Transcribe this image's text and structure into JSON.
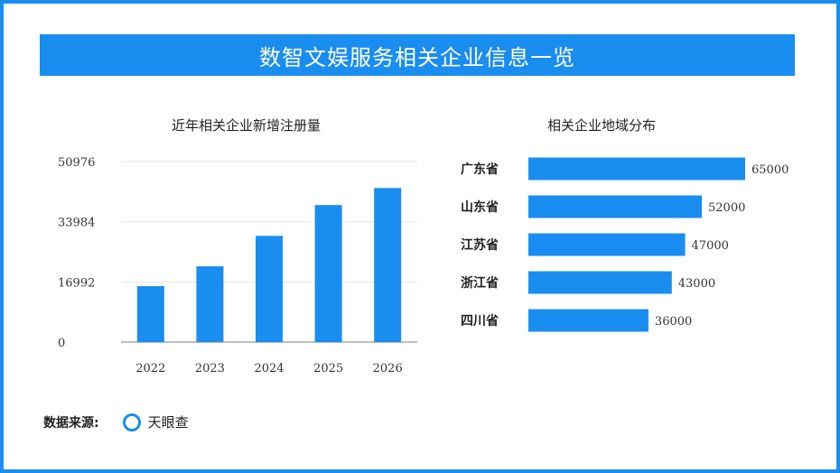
{
  "page": {
    "title": "数智文娱服务相关企业信息一览",
    "source_label": "数据来源:",
    "source_name": "天眼查",
    "accent": "#1a8df0"
  },
  "chart_data": [
    {
      "type": "bar",
      "title": "近年相关企业新增注册量",
      "categories": [
        "2022",
        "2023",
        "2024",
        "2025",
        "2026"
      ],
      "values": [
        15800,
        21400,
        30000,
        38700,
        43500
      ],
      "yticks": [
        0,
        16992,
        33984,
        50976
      ],
      "ylim": [
        0,
        50976
      ],
      "grid": true,
      "color": "#1a8df0"
    },
    {
      "type": "bar",
      "orientation": "horizontal",
      "title": "相关企业地域分布",
      "categories": [
        "广东省",
        "山东省",
        "江苏省",
        "浙江省",
        "四川省"
      ],
      "values": [
        65000,
        52000,
        47000,
        43000,
        36000
      ],
      "labels": [
        "65000",
        "52000",
        "47000",
        "43000",
        "36000"
      ],
      "color": "#1a8df0"
    }
  ]
}
